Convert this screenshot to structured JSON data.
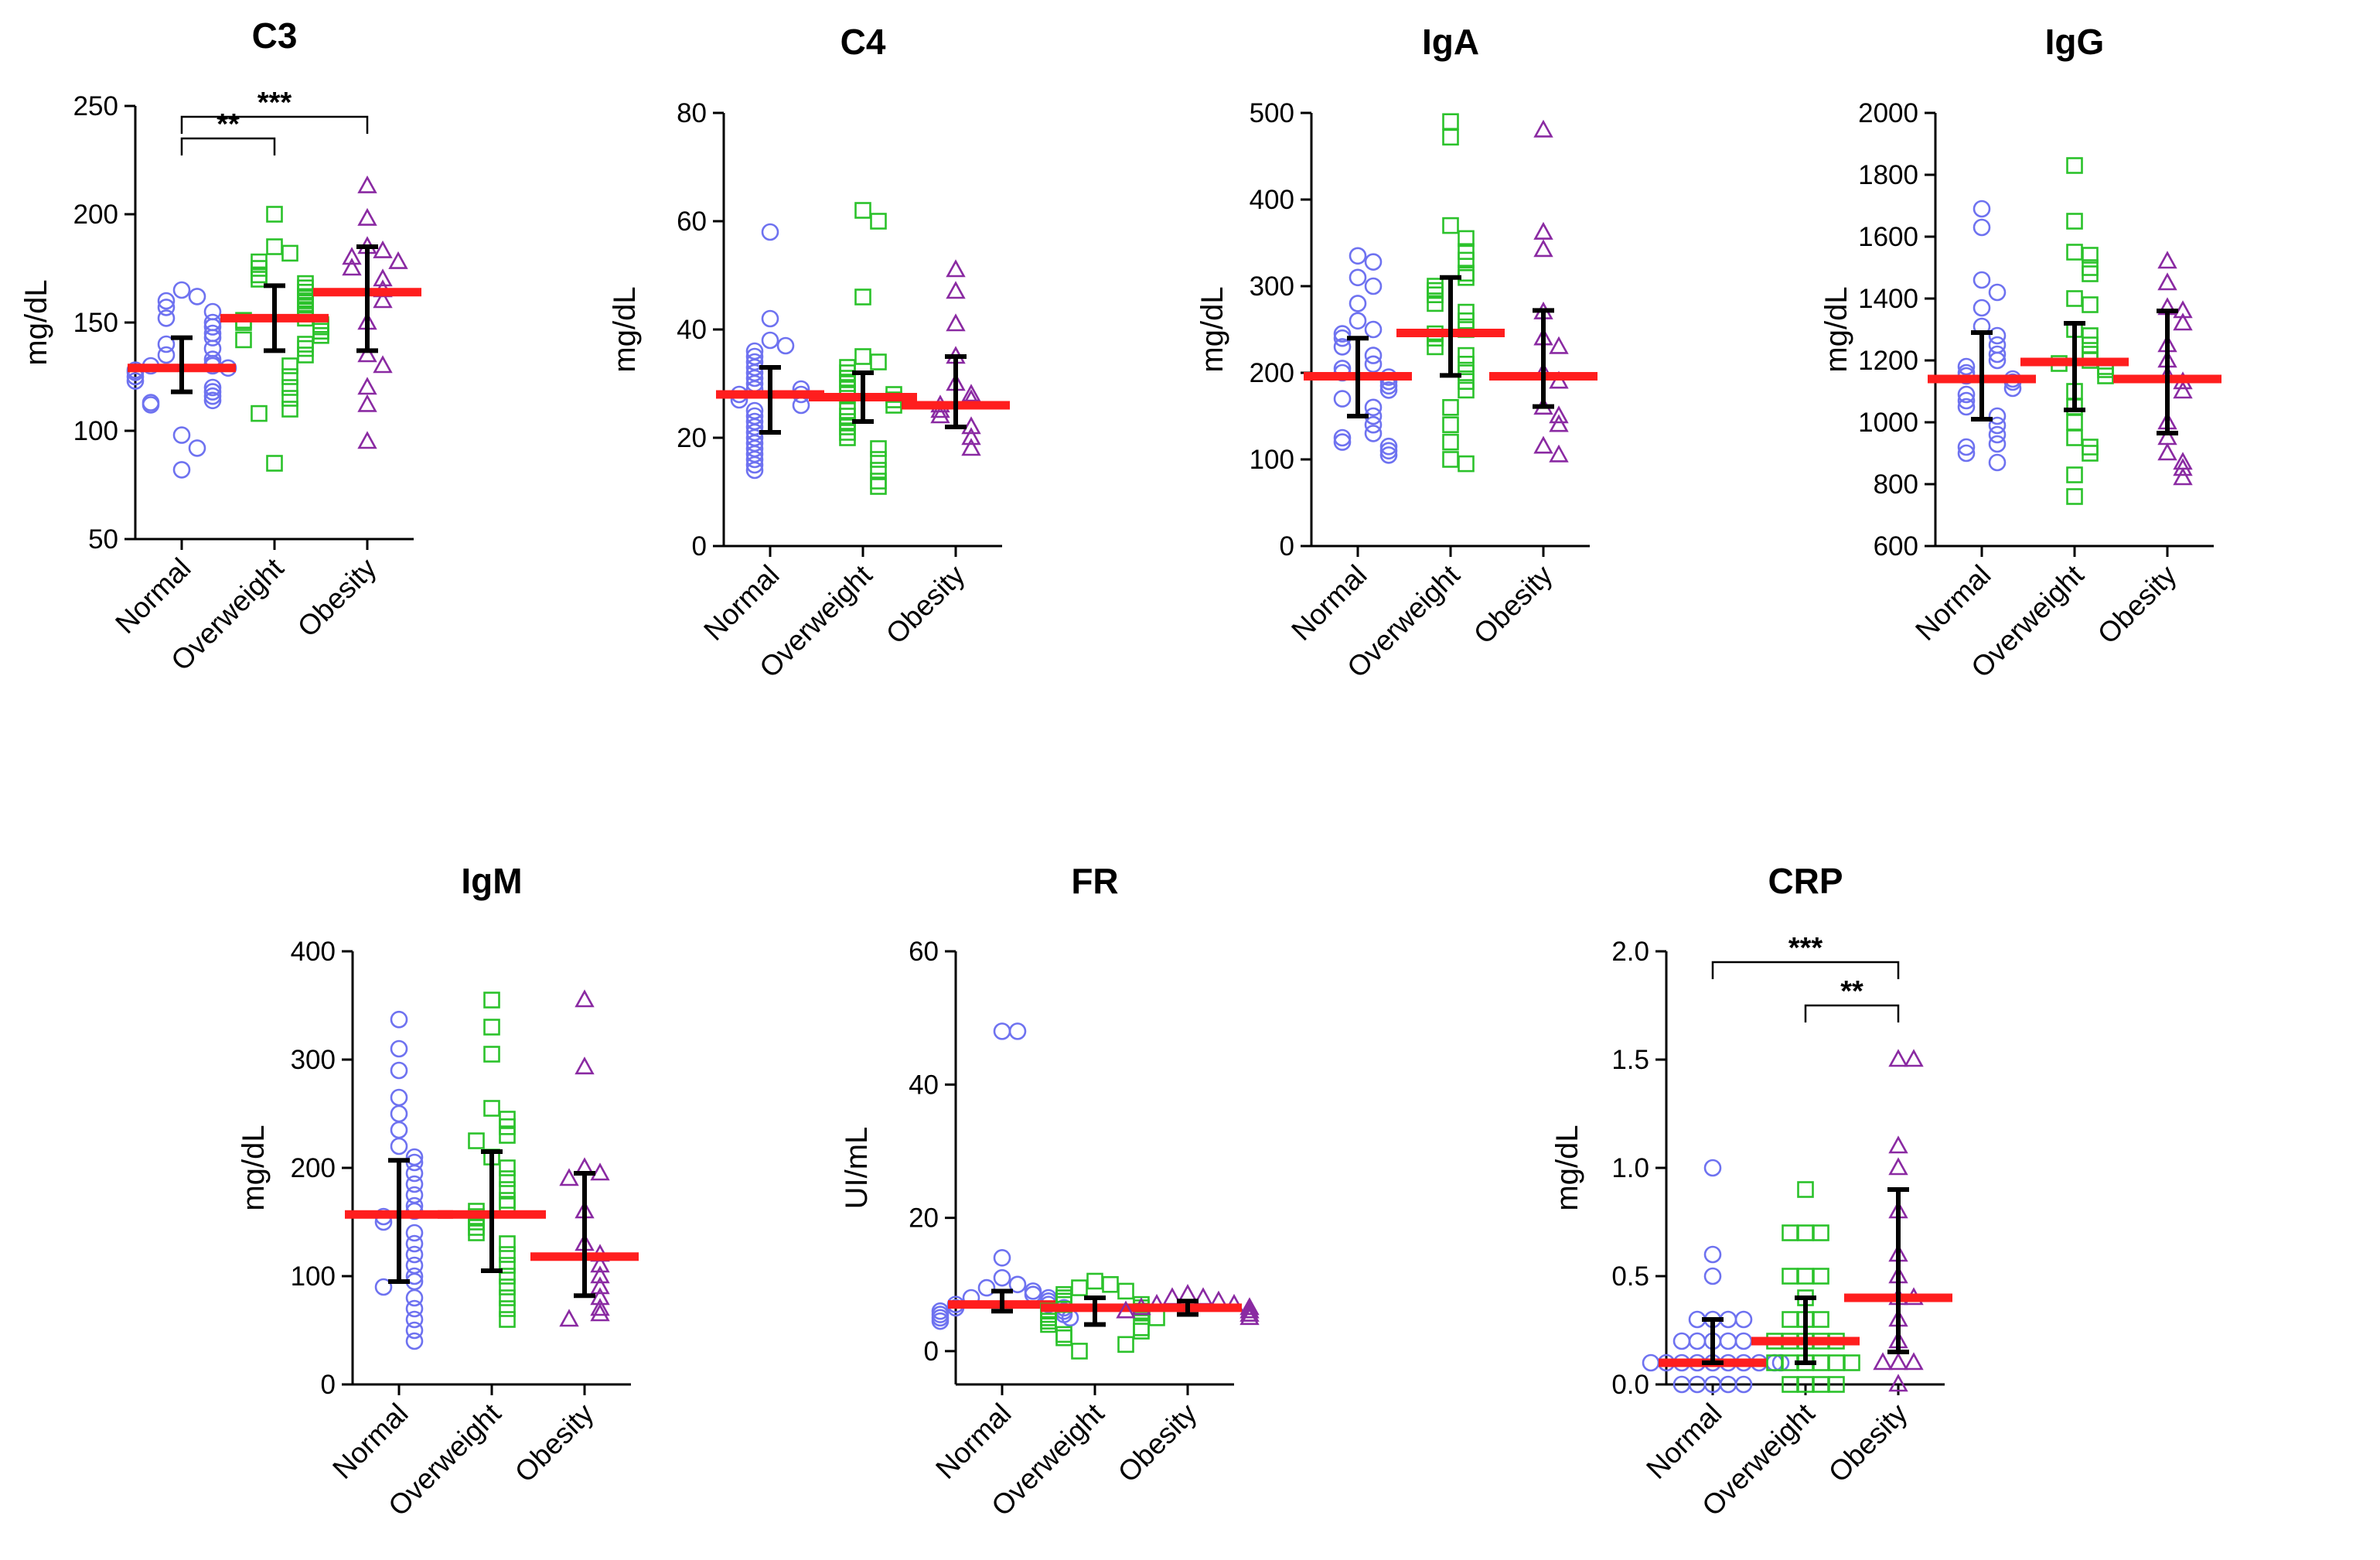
{
  "colors": {
    "Normal": "#6e72f0",
    "Overweight": "#2bc22b",
    "Obesity": "#8a2aa2",
    "median": "#ff1e1e",
    "errorbar": "#000000"
  },
  "markers": {
    "Normal": "circle",
    "Overweight": "square",
    "Obesity": "triangle"
  },
  "chart_data": [
    {
      "type": "scatter",
      "title": "C3",
      "ylabel": "mg/dL",
      "ylim": [
        50,
        250
      ],
      "yticks": [
        50,
        100,
        150,
        200,
        250
      ],
      "tick_labels": [
        "50",
        "100",
        "150",
        "200",
        "250"
      ],
      "categories": [
        "Normal",
        "Overweight",
        "Obesity"
      ],
      "series": [
        {
          "name": "Normal",
          "median": 129,
          "error_low": 118,
          "error_high": 143,
          "values": [
            165,
            162,
            160,
            157,
            155,
            152,
            150,
            148,
            145,
            143,
            140,
            138,
            135,
            133,
            131,
            130,
            130,
            129,
            128,
            127,
            125,
            123,
            120,
            118,
            116,
            114,
            113,
            112,
            98,
            92,
            82
          ]
        },
        {
          "name": "Overweight",
          "median": 152,
          "error_low": 137,
          "error_high": 167,
          "values": [
            200,
            185,
            182,
            178,
            175,
            172,
            170,
            168,
            166,
            164,
            162,
            160,
            158,
            156,
            154,
            152,
            151,
            150,
            149,
            148,
            146,
            144,
            142,
            140,
            138,
            135,
            130,
            125,
            120,
            115,
            110,
            108,
            85
          ]
        },
        {
          "name": "Obesity",
          "median": 164,
          "error_low": 137,
          "error_high": 185,
          "values": [
            213,
            198,
            185,
            183,
            180,
            178,
            175,
            170,
            165,
            160,
            150,
            135,
            130,
            120,
            112,
            95
          ]
        }
      ],
      "significance": [
        {
          "from": "Normal",
          "to": "Overweight",
          "label": "**",
          "y": 235
        },
        {
          "from": "Normal",
          "to": "Obesity",
          "label": "***",
          "y": 245
        }
      ]
    },
    {
      "type": "scatter",
      "title": "C4",
      "ylabel": "mg/dL",
      "ylim": [
        0,
        80
      ],
      "yticks": [
        0,
        20,
        40,
        60,
        80
      ],
      "tick_labels": [
        "0",
        "20",
        "40",
        "60",
        "80"
      ],
      "categories": [
        "Normal",
        "Overweight",
        "Obesity"
      ],
      "series": [
        {
          "name": "Normal",
          "median": 28,
          "error_low": 21,
          "error_high": 33,
          "values": [
            58,
            42,
            38,
            37,
            36,
            35,
            34,
            33,
            32,
            31,
            30,
            29,
            29,
            28,
            28,
            27,
            26,
            25,
            24,
            23,
            22,
            21,
            20,
            19,
            18,
            17,
            16,
            15,
            14
          ]
        },
        {
          "name": "Overweight",
          "median": 27.5,
          "error_low": 23,
          "error_high": 32,
          "values": [
            62,
            60,
            46,
            35,
            34,
            33,
            32,
            31,
            30,
            29,
            28,
            28,
            27,
            26,
            25,
            24,
            23,
            22,
            21,
            20,
            18,
            16,
            14,
            12,
            11
          ]
        },
        {
          "name": "Obesity",
          "median": 26,
          "error_low": 22,
          "error_high": 35,
          "values": [
            51,
            47,
            41,
            35,
            30,
            28,
            27,
            26,
            25,
            24,
            22,
            20,
            18
          ]
        }
      ],
      "significance": []
    },
    {
      "type": "scatter",
      "title": "IgA",
      "ylabel": "mg/dL",
      "ylim": [
        0,
        500
      ],
      "yticks": [
        0,
        100,
        200,
        300,
        400,
        500
      ],
      "tick_labels": [
        "0",
        "100",
        "200",
        "300",
        "400",
        "500"
      ],
      "categories": [
        "Normal",
        "Overweight",
        "Obesity"
      ],
      "series": [
        {
          "name": "Normal",
          "median": 196,
          "error_low": 150,
          "error_high": 240,
          "values": [
            335,
            328,
            310,
            300,
            280,
            260,
            250,
            245,
            240,
            230,
            220,
            210,
            205,
            200,
            195,
            190,
            185,
            180,
            170,
            160,
            150,
            140,
            130,
            125,
            120,
            115,
            110,
            105
          ]
        },
        {
          "name": "Overweight",
          "median": 246,
          "error_low": 197,
          "error_high": 310,
          "values": [
            490,
            472,
            370,
            355,
            340,
            330,
            315,
            310,
            300,
            295,
            290,
            280,
            270,
            260,
            250,
            245,
            240,
            230,
            220,
            210,
            200,
            190,
            180,
            160,
            140,
            120,
            100,
            95
          ]
        },
        {
          "name": "Obesity",
          "median": 196,
          "error_low": 161,
          "error_high": 272,
          "values": [
            480,
            362,
            342,
            270,
            240,
            230,
            200,
            190,
            160,
            150,
            140,
            115,
            105
          ]
        }
      ],
      "significance": []
    },
    {
      "type": "scatter",
      "title": "IgG",
      "ylabel": "mg/dL",
      "ylim": [
        600,
        2000
      ],
      "yticks": [
        600,
        800,
        1000,
        1200,
        1400,
        1600,
        1800,
        2000
      ],
      "tick_labels": [
        "600",
        "800",
        "1000",
        "1200",
        "1400",
        "1600",
        "1800",
        "2000"
      ],
      "categories": [
        "Normal",
        "Overweight",
        "Obesity"
      ],
      "series": [
        {
          "name": "Normal",
          "median": 1140,
          "error_low": 1010,
          "error_high": 1290,
          "values": [
            1690,
            1630,
            1460,
            1420,
            1370,
            1310,
            1280,
            1250,
            1220,
            1200,
            1180,
            1160,
            1150,
            1140,
            1130,
            1110,
            1090,
            1070,
            1050,
            1020,
            990,
            960,
            930,
            920,
            900,
            870
          ]
        },
        {
          "name": "Overweight",
          "median": 1195,
          "error_low": 1040,
          "error_high": 1320,
          "values": [
            1830,
            1650,
            1550,
            1540,
            1500,
            1480,
            1400,
            1380,
            1300,
            1280,
            1250,
            1220,
            1200,
            1190,
            1180,
            1170,
            1150,
            1100,
            1050,
            1000,
            950,
            920,
            900,
            830,
            760
          ]
        },
        {
          "name": "Obesity",
          "median": 1140,
          "error_low": 965,
          "error_high": 1360,
          "values": [
            1520,
            1450,
            1370,
            1360,
            1320,
            1250,
            1200,
            1150,
            1130,
            1100,
            1000,
            950,
            900,
            870,
            850,
            820
          ]
        }
      ],
      "significance": []
    },
    {
      "type": "scatter",
      "title": "IgM",
      "ylabel": "mg/dL",
      "ylim": [
        0,
        400
      ],
      "yticks": [
        0,
        100,
        200,
        300,
        400
      ],
      "tick_labels": [
        "0",
        "100",
        "200",
        "300",
        "400"
      ],
      "categories": [
        "Normal",
        "Overweight",
        "Obesity"
      ],
      "series": [
        {
          "name": "Normal",
          "median": 157,
          "error_low": 95,
          "error_high": 207,
          "values": [
            337,
            310,
            290,
            265,
            250,
            235,
            220,
            210,
            205,
            195,
            185,
            175,
            165,
            160,
            155,
            150,
            140,
            130,
            120,
            110,
            100,
            95,
            90,
            80,
            70,
            60,
            50,
            40
          ]
        },
        {
          "name": "Overweight",
          "median": 157,
          "error_low": 105,
          "error_high": 215,
          "values": [
            355,
            330,
            305,
            255,
            245,
            238,
            230,
            225,
            210,
            200,
            190,
            180,
            170,
            165,
            160,
            155,
            150,
            145,
            140,
            130,
            120,
            110,
            100,
            90,
            80,
            70,
            60
          ]
        },
        {
          "name": "Obesity",
          "median": 118,
          "error_low": 82,
          "error_high": 195,
          "values": [
            355,
            293,
            200,
            195,
            190,
            160,
            130,
            120,
            110,
            100,
            90,
            80,
            70,
            65,
            60
          ]
        }
      ],
      "significance": []
    },
    {
      "type": "scatter",
      "title": "FR",
      "ylabel": "UI/mL",
      "ylim": [
        -5,
        60
      ],
      "yticks": [
        0,
        20,
        40,
        60
      ],
      "tick_labels": [
        "0",
        "20",
        "40",
        "60"
      ],
      "categories": [
        "Normal",
        "Overweight",
        "Obesity"
      ],
      "series": [
        {
          "name": "Normal",
          "median": 7,
          "error_low": 6,
          "error_high": 9,
          "values": [
            48,
            48,
            14,
            11,
            10,
            9.5,
            9,
            8.5,
            8,
            8,
            7.5,
            7,
            7,
            6.5,
            6.5,
            6,
            6,
            5.5,
            5.5,
            5,
            5,
            4.5
          ]
        },
        {
          "name": "Overweight",
          "median": 6.5,
          "error_low": 4,
          "error_high": 8,
          "values": [
            10.5,
            10,
            9.5,
            9,
            8.5,
            8,
            7.5,
            7,
            7,
            6.5,
            6,
            6,
            5.5,
            5,
            5,
            4.5,
            4,
            3.5,
            3,
            2.5,
            2,
            1,
            0
          ]
        },
        {
          "name": "Obesity",
          "median": 6.5,
          "error_low": 5.5,
          "error_high": 7.5,
          "values": [
            8.5,
            8,
            8,
            7.5,
            7,
            7,
            6.5,
            6.5,
            6,
            6,
            5.5,
            5
          ]
        }
      ],
      "significance": []
    },
    {
      "type": "scatter",
      "title": "CRP",
      "ylabel": "mg/dL",
      "ylim": [
        0,
        2.0
      ],
      "yticks": [
        0,
        0.5,
        1.0,
        1.5,
        2.0
      ],
      "tick_labels": [
        "0.0",
        "0.5",
        "1.0",
        "1.5",
        "2.0"
      ],
      "categories": [
        "Normal",
        "Overweight",
        "Obesity"
      ],
      "series": [
        {
          "name": "Normal",
          "median": 0.1,
          "error_low": 0.1,
          "error_high": 0.3,
          "values": [
            1.0,
            0.6,
            0.5,
            0.3,
            0.3,
            0.3,
            0.3,
            0.2,
            0.2,
            0.2,
            0.2,
            0.2,
            0.1,
            0.1,
            0.1,
            0.1,
            0.1,
            0.1,
            0.1,
            0.1,
            0.1,
            0.1,
            0.0,
            0.0,
            0.0,
            0.0,
            0.0
          ]
        },
        {
          "name": "Overweight",
          "median": 0.2,
          "error_low": 0.1,
          "error_high": 0.4,
          "values": [
            0.9,
            0.7,
            0.7,
            0.7,
            0.5,
            0.5,
            0.5,
            0.4,
            0.3,
            0.3,
            0.3,
            0.2,
            0.2,
            0.2,
            0.2,
            0.2,
            0.1,
            0.1,
            0.1,
            0.1,
            0.1,
            0.1,
            0.0,
            0.0,
            0.0,
            0.0
          ]
        },
        {
          "name": "Obesity",
          "median": 0.4,
          "error_low": 0.15,
          "error_high": 0.9,
          "values": [
            1.5,
            1.5,
            1.1,
            1.0,
            0.8,
            0.6,
            0.5,
            0.4,
            0.4,
            0.3,
            0.2,
            0.1,
            0.1,
            0.1,
            0.0
          ]
        }
      ],
      "significance": [
        {
          "from": "Normal",
          "to": "Obesity",
          "label": "***",
          "y": 1.95
        },
        {
          "from": "Overweight",
          "to": "Obesity",
          "label": "**",
          "y": 1.75
        }
      ]
    }
  ]
}
